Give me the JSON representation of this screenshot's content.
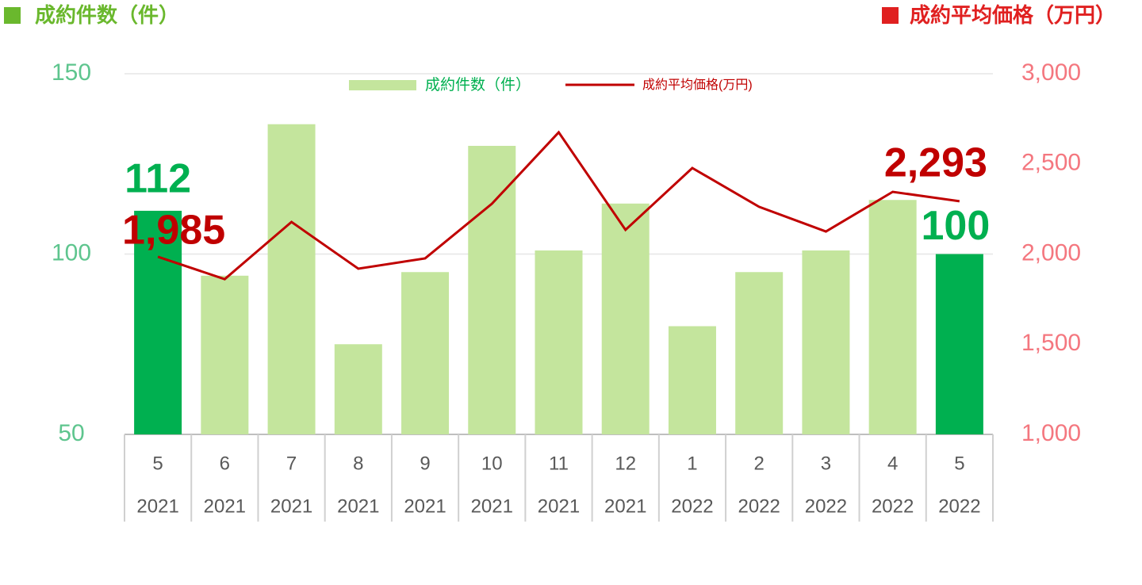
{
  "chart_data": {
    "type": "bar_line",
    "left_axis_title": "成約件数（件）",
    "right_axis_title": "成約平均価格（万円）",
    "left_title_color": "#6ab82d",
    "right_title_color": "#e02020",
    "categories": [
      [
        "5",
        "2021"
      ],
      [
        "6",
        "2021"
      ],
      [
        "7",
        "2021"
      ],
      [
        "8",
        "2021"
      ],
      [
        "9",
        "2021"
      ],
      [
        "10",
        "2021"
      ],
      [
        "11",
        "2021"
      ],
      [
        "12",
        "2021"
      ],
      [
        "1",
        "2022"
      ],
      [
        "2",
        "2022"
      ],
      [
        "3",
        "2022"
      ],
      [
        "4",
        "2022"
      ],
      [
        "5",
        "2022"
      ]
    ],
    "series": [
      {
        "name": "成約件数（件）",
        "type": "bar",
        "color": "#c4e59d",
        "colors": [
          "#00b050",
          "#c4e59d",
          "#c4e59d",
          "#c4e59d",
          "#c4e59d",
          "#c4e59d",
          "#c4e59d",
          "#c4e59d",
          "#c4e59d",
          "#c4e59d",
          "#c4e59d",
          "#c4e59d",
          "#00b050"
        ],
        "label_color": "#00b050",
        "values": [
          112,
          94,
          136,
          75,
          95,
          130,
          101,
          114,
          80,
          95,
          101,
          115,
          100
        ],
        "value_labels": [
          "112",
          null,
          null,
          null,
          null,
          null,
          null,
          null,
          null,
          null,
          null,
          null,
          "100"
        ]
      },
      {
        "name": "成約平均価格(万円)",
        "type": "line",
        "axis": "y2",
        "color": "#c00000",
        "label_color": "#c00000",
        "values": [
          1985,
          1861,
          2178,
          1919,
          1976,
          2279,
          2675,
          2134,
          2477,
          2262,
          2125,
          2345,
          2293
        ],
        "value_labels": [
          "1,985",
          null,
          null,
          null,
          null,
          null,
          null,
          null,
          null,
          null,
          null,
          null,
          "2,293"
        ]
      }
    ],
    "ylim": [
      50,
      150
    ],
    "yticks": [
      50,
      100,
      150
    ],
    "y2lim": [
      1000,
      3000
    ],
    "y2ticks": [
      {
        "value": 1000,
        "label": "1,000"
      },
      {
        "value": 1500,
        "label": "1,500"
      },
      {
        "value": 2000,
        "label": "2,000"
      },
      {
        "value": 2500,
        "label": "2,500"
      },
      {
        "value": 3000,
        "label": "3,000"
      }
    ],
    "ytick_color": "#5ec58e",
    "y2tick_color": "#f4777f",
    "grid": true
  }
}
